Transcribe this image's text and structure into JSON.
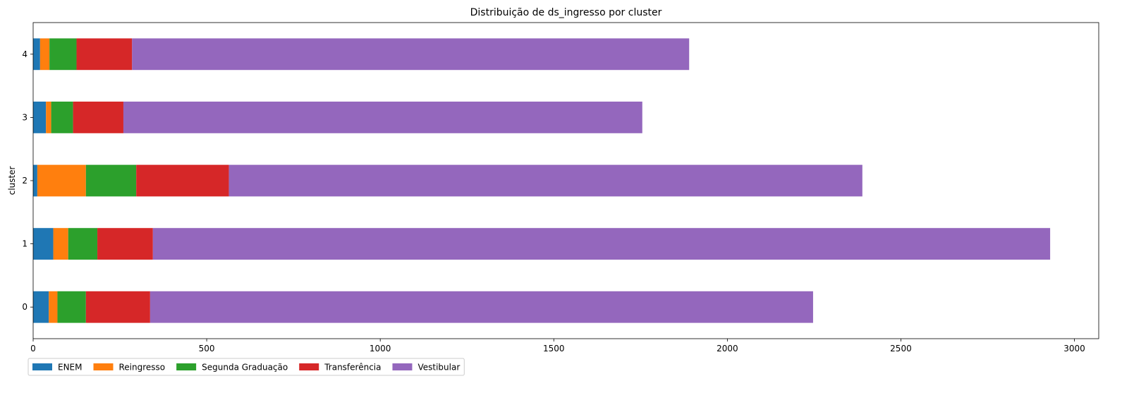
{
  "chart_data": {
    "type": "bar",
    "orientation": "horizontal",
    "stacked": true,
    "title": "Distribuição de ds_ingresso por cluster",
    "xlabel": "",
    "ylabel": "cluster",
    "xlim": [
      0,
      3070
    ],
    "ylim": [
      -0.5,
      4.5
    ],
    "xticks": [
      0,
      500,
      1000,
      1500,
      2000,
      2500,
      3000
    ],
    "categories": [
      "0",
      "1",
      "2",
      "3",
      "4"
    ],
    "series": [
      {
        "name": "ENEM",
        "color": "#1f77b4",
        "values": [
          45,
          58,
          12,
          37,
          20
        ]
      },
      {
        "name": "Reingresso",
        "color": "#ff7f0e",
        "values": [
          25,
          43,
          140,
          15,
          27
        ]
      },
      {
        "name": "Segunda Graduação",
        "color": "#2ca02c",
        "values": [
          82,
          84,
          145,
          63,
          78
        ]
      },
      {
        "name": "Transferência",
        "color": "#d62728",
        "values": [
          185,
          160,
          267,
          145,
          160
        ]
      },
      {
        "name": "Vestibular",
        "color": "#9467bd",
        "values": [
          1910,
          2585,
          1825,
          1495,
          1605
        ]
      }
    ],
    "grid": false,
    "legend": {
      "placement": "bottom-left"
    }
  }
}
